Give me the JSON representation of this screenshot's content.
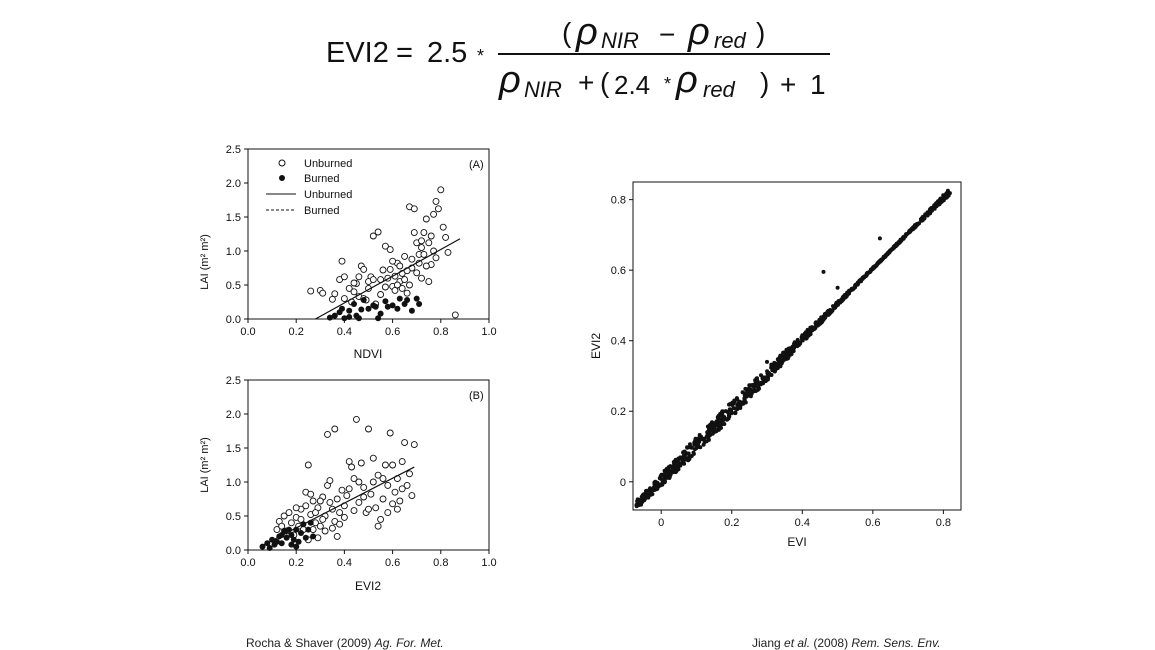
{
  "formula": {
    "lhs": "EVI2",
    "eq": "=",
    "coef": "2.5",
    "times": "*",
    "num_open": "(",
    "rho": "ρ",
    "sub_nir": "NIR",
    "minus": "−",
    "sub_red": "red",
    "num_close": ")",
    "den_plus1": "+",
    "den_open": "(",
    "den_coef": "2.4",
    "den_close": ")",
    "den_plus2": "+",
    "den_one": "1"
  },
  "citations": {
    "left_plain": "Rocha & Shaver (2009) ",
    "left_italic": "Ag. For. Met.",
    "right_plain1": "Jiang ",
    "right_italic1": "et al.",
    "right_plain2": " (2008) ",
    "right_italic2": "Rem. Sens. Env."
  },
  "chart_data": [
    {
      "id": "A",
      "type": "scatter",
      "panel_label": "(A)",
      "xlabel": "NDVI",
      "ylabel": "LAI (m² m²)",
      "xlim": [
        0,
        1
      ],
      "ylim": [
        0,
        2.5
      ],
      "x_ticks": [
        "0.0",
        "0.2",
        "0.4",
        "0.6",
        "0.8",
        "1.0"
      ],
      "y_ticks": [
        "0.0",
        "0.5",
        "1.0",
        "1.5",
        "2.0",
        "2.5"
      ],
      "legend": {
        "position": "top-left",
        "entries": [
          "Unburned",
          "Burned",
          "Unburned",
          "Burned"
        ]
      },
      "series": [
        {
          "name": "Unburned",
          "marker": "open-circle",
          "points": [
            [
              0.26,
              0.41
            ],
            [
              0.3,
              0.42
            ],
            [
              0.31,
              0.38
            ],
            [
              0.36,
              0.37
            ],
            [
              0.38,
              0.58
            ],
            [
              0.39,
              0.85
            ],
            [
              0.4,
              0.62
            ],
            [
              0.42,
              0.45
            ],
            [
              0.44,
              0.4
            ],
            [
              0.45,
              0.52
            ],
            [
              0.46,
              0.33
            ],
            [
              0.47,
              0.78
            ],
            [
              0.48,
              0.3
            ],
            [
              0.49,
              0.28
            ],
            [
              0.5,
              0.45
            ],
            [
              0.51,
              0.62
            ],
            [
              0.52,
              1.22
            ],
            [
              0.53,
              0.22
            ],
            [
              0.54,
              1.28
            ],
            [
              0.55,
              0.36
            ],
            [
              0.56,
              0.72
            ],
            [
              0.57,
              1.07
            ],
            [
              0.58,
              0.6
            ],
            [
              0.59,
              1.02
            ],
            [
              0.6,
              0.48
            ],
            [
              0.61,
              0.42
            ],
            [
              0.62,
              0.82
            ],
            [
              0.63,
              0.55
            ],
            [
              0.64,
              0.67
            ],
            [
              0.65,
              0.92
            ],
            [
              0.66,
              0.38
            ],
            [
              0.67,
              1.65
            ],
            [
              0.68,
              0.75
            ],
            [
              0.69,
              1.27
            ],
            [
              0.7,
              1.12
            ],
            [
              0.71,
              0.95
            ],
            [
              0.72,
              0.6
            ],
            [
              0.73,
              1.27
            ],
            [
              0.74,
              1.47
            ],
            [
              0.75,
              1.12
            ],
            [
              0.76,
              0.8
            ],
            [
              0.77,
              1.54
            ],
            [
              0.78,
              1.73
            ],
            [
              0.79,
              1.62
            ],
            [
              0.8,
              1.9
            ],
            [
              0.81,
              1.35
            ],
            [
              0.82,
              1.2
            ],
            [
              0.83,
              0.98
            ],
            [
              0.86,
              0.06
            ],
            [
              0.35,
              0.29
            ],
            [
              0.4,
              0.3
            ],
            [
              0.43,
              0.25
            ],
            [
              0.44,
              0.53
            ],
            [
              0.46,
              0.62
            ],
            [
              0.48,
              0.73
            ],
            [
              0.5,
              0.55
            ],
            [
              0.52,
              0.58
            ],
            [
              0.55,
              0.58
            ],
            [
              0.57,
              0.47
            ],
            [
              0.59,
              0.73
            ],
            [
              0.6,
              0.85
            ],
            [
              0.61,
              0.63
            ],
            [
              0.62,
              0.5
            ],
            [
              0.63,
              0.78
            ],
            [
              0.64,
              0.45
            ],
            [
              0.65,
              0.58
            ],
            [
              0.66,
              0.71
            ],
            [
              0.67,
              0.5
            ],
            [
              0.68,
              0.88
            ],
            [
              0.7,
              0.68
            ],
            [
              0.71,
              0.82
            ],
            [
              0.72,
              1.05
            ],
            [
              0.73,
              0.95
            ],
            [
              0.74,
              0.78
            ],
            [
              0.75,
              0.55
            ],
            [
              0.76,
              1.22
            ],
            [
              0.77,
              1.0
            ],
            [
              0.78,
              0.9
            ],
            [
              0.72,
              1.15
            ],
            [
              0.69,
              1.62
            ]
          ]
        },
        {
          "name": "Burned",
          "marker": "filled-circle",
          "points": [
            [
              0.34,
              0.02
            ],
            [
              0.36,
              0.05
            ],
            [
              0.38,
              0.1
            ],
            [
              0.39,
              0.15
            ],
            [
              0.4,
              0.01
            ],
            [
              0.42,
              0.03
            ],
            [
              0.44,
              0.22
            ],
            [
              0.46,
              0.01
            ],
            [
              0.47,
              0.14
            ],
            [
              0.48,
              0.28
            ],
            [
              0.5,
              0.15
            ],
            [
              0.52,
              0.2
            ],
            [
              0.53,
              0.18
            ],
            [
              0.54,
              0.01
            ],
            [
              0.55,
              0.08
            ],
            [
              0.57,
              0.26
            ],
            [
              0.58,
              0.18
            ],
            [
              0.6,
              0.2
            ],
            [
              0.62,
              0.15
            ],
            [
              0.63,
              0.3
            ],
            [
              0.65,
              0.22
            ],
            [
              0.66,
              0.28
            ],
            [
              0.68,
              0.12
            ],
            [
              0.7,
              0.3
            ],
            [
              0.71,
              0.22
            ],
            [
              0.42,
              0.12
            ],
            [
              0.45,
              0.05
            ]
          ]
        }
      ],
      "fit_lines": [
        {
          "name": "Unburned",
          "style": "solid",
          "x": [
            0.28,
            0.88
          ],
          "y": [
            0.0,
            1.18
          ]
        }
      ]
    },
    {
      "id": "B",
      "type": "scatter",
      "panel_label": "(B)",
      "xlabel": "EVI2",
      "ylabel": "LAI (m² m²)",
      "xlim": [
        0,
        1
      ],
      "ylim": [
        0,
        2.5
      ],
      "x_ticks": [
        "0.0",
        "0.2",
        "0.4",
        "0.6",
        "0.8",
        "1.0"
      ],
      "y_ticks": [
        "0.0",
        "0.5",
        "1.0",
        "1.5",
        "2.0",
        "2.5"
      ],
      "series": [
        {
          "name": "Unburned",
          "marker": "open-circle",
          "points": [
            [
              0.12,
              0.3
            ],
            [
              0.13,
              0.42
            ],
            [
              0.14,
              0.35
            ],
            [
              0.15,
              0.5
            ],
            [
              0.16,
              0.28
            ],
            [
              0.17,
              0.55
            ],
            [
              0.18,
              0.4
            ],
            [
              0.19,
              0.22
            ],
            [
              0.2,
              0.48
            ],
            [
              0.21,
              0.35
            ],
            [
              0.22,
              0.6
            ],
            [
              0.23,
              0.3
            ],
            [
              0.24,
              0.85
            ],
            [
              0.25,
              1.25
            ],
            [
              0.26,
              0.52
            ],
            [
              0.27,
              0.72
            ],
            [
              0.28,
              0.4
            ],
            [
              0.29,
              0.62
            ],
            [
              0.3,
              0.35
            ],
            [
              0.31,
              0.78
            ],
            [
              0.32,
              0.5
            ],
            [
              0.33,
              0.95
            ],
            [
              0.34,
              1.02
            ],
            [
              0.35,
              0.6
            ],
            [
              0.36,
              0.42
            ],
            [
              0.37,
              0.75
            ],
            [
              0.38,
              0.55
            ],
            [
              0.39,
              0.88
            ],
            [
              0.4,
              0.65
            ],
            [
              0.41,
              0.8
            ],
            [
              0.42,
              1.3
            ],
            [
              0.43,
              1.22
            ],
            [
              0.44,
              1.05
            ],
            [
              0.45,
              1.92
            ],
            [
              0.46,
              0.7
            ],
            [
              0.47,
              1.28
            ],
            [
              0.48,
              0.92
            ],
            [
              0.49,
              0.55
            ],
            [
              0.5,
              1.78
            ],
            [
              0.51,
              0.82
            ],
            [
              0.52,
              1.35
            ],
            [
              0.53,
              0.62
            ],
            [
              0.54,
              1.1
            ],
            [
              0.55,
              0.45
            ],
            [
              0.56,
              0.75
            ],
            [
              0.57,
              1.25
            ],
            [
              0.58,
              0.95
            ],
            [
              0.59,
              1.72
            ],
            [
              0.6,
              0.68
            ],
            [
              0.61,
              0.85
            ],
            [
              0.62,
              1.05
            ],
            [
              0.63,
              0.72
            ],
            [
              0.64,
              1.3
            ],
            [
              0.65,
              1.58
            ],
            [
              0.66,
              0.95
            ],
            [
              0.67,
              1.12
            ],
            [
              0.68,
              0.8
            ],
            [
              0.69,
              1.55
            ],
            [
              0.33,
              1.7
            ],
            [
              0.36,
              1.78
            ],
            [
              0.2,
              0.62
            ],
            [
              0.22,
              0.45
            ],
            [
              0.28,
              0.55
            ],
            [
              0.3,
              0.72
            ],
            [
              0.32,
              0.28
            ],
            [
              0.34,
              0.7
            ],
            [
              0.38,
              0.38
            ],
            [
              0.4,
              0.48
            ],
            [
              0.42,
              0.9
            ],
            [
              0.44,
              0.58
            ],
            [
              0.46,
              1.0
            ],
            [
              0.48,
              0.78
            ],
            [
              0.5,
              0.6
            ],
            [
              0.52,
              1.0
            ],
            [
              0.54,
              0.35
            ],
            [
              0.56,
              1.05
            ],
            [
              0.58,
              0.55
            ],
            [
              0.6,
              1.25
            ],
            [
              0.62,
              0.6
            ],
            [
              0.64,
              0.9
            ],
            [
              0.25,
              0.15
            ],
            [
              0.27,
              0.3
            ],
            [
              0.29,
              0.18
            ],
            [
              0.35,
              0.32
            ],
            [
              0.37,
              0.2
            ],
            [
              0.24,
              0.65
            ],
            [
              0.26,
              0.82
            ],
            [
              0.31,
              0.45
            ]
          ]
        },
        {
          "name": "Burned",
          "marker": "filled-circle",
          "points": [
            [
              0.06,
              0.05
            ],
            [
              0.08,
              0.1
            ],
            [
              0.09,
              0.03
            ],
            [
              0.1,
              0.15
            ],
            [
              0.11,
              0.08
            ],
            [
              0.12,
              0.12
            ],
            [
              0.13,
              0.2
            ],
            [
              0.14,
              0.1
            ],
            [
              0.15,
              0.28
            ],
            [
              0.16,
              0.18
            ],
            [
              0.17,
              0.3
            ],
            [
              0.18,
              0.22
            ],
            [
              0.19,
              0.15
            ],
            [
              0.2,
              0.3
            ],
            [
              0.21,
              0.12
            ],
            [
              0.22,
              0.25
            ],
            [
              0.23,
              0.38
            ],
            [
              0.24,
              0.18
            ],
            [
              0.25,
              0.3
            ],
            [
              0.26,
              0.4
            ],
            [
              0.27,
              0.2
            ],
            [
              0.14,
              0.22
            ],
            [
              0.18,
              0.08
            ],
            [
              0.2,
              0.05
            ]
          ]
        }
      ],
      "fit_lines": [
        {
          "name": "Unburned",
          "style": "solid",
          "x": [
            0.05,
            0.69
          ],
          "y": [
            0.05,
            1.22
          ]
        }
      ]
    },
    {
      "id": "C",
      "type": "scatter",
      "xlabel": "EVI",
      "ylabel": "EVI2",
      "xlim": [
        -0.08,
        0.85
      ],
      "ylim": [
        -0.08,
        0.85
      ],
      "x_ticks": [
        "0",
        "0.2",
        "0.4",
        "0.6",
        "0.8"
      ],
      "y_ticks": [
        "0",
        "0.2",
        "0.4",
        "0.6",
        "0.8"
      ],
      "series": [
        {
          "marker": "filled-dot",
          "relation": "EVI2 ≈ EVI",
          "x_range": [
            -0.07,
            0.82
          ],
          "y_range": [
            -0.06,
            0.82
          ]
        }
      ]
    }
  ]
}
